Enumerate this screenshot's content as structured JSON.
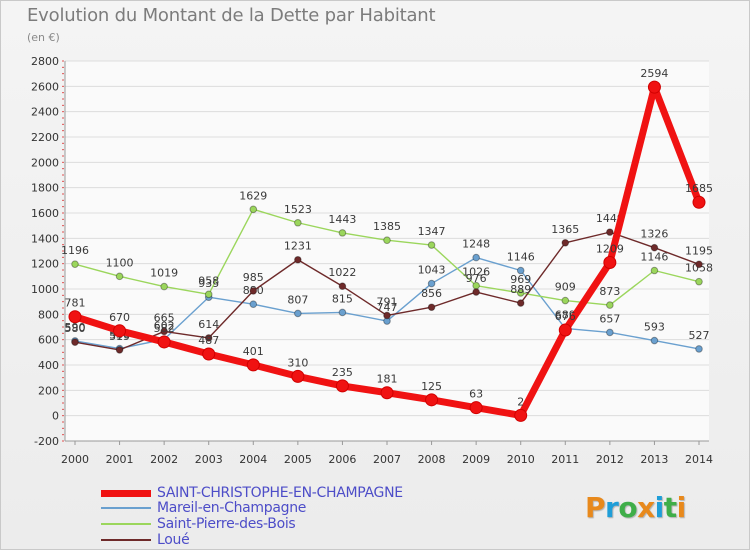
{
  "title": "Evolution du Montant de la Dette par Habitant",
  "unit": "(en €)",
  "logo": {
    "text": "Proxiti",
    "letter_colors": [
      "#e8891c",
      "#1f9ed8",
      "#3fae49",
      "#e8891c",
      "#1f9ed8",
      "#3fae49",
      "#e8891c"
    ]
  },
  "chart_data": {
    "type": "line",
    "title": "Evolution du Montant de la Dette par Habitant",
    "ylabel": "(en €)",
    "xlabel": "",
    "ylim": [
      -200,
      2800
    ],
    "y_ticks": [
      -200,
      0,
      200,
      400,
      600,
      800,
      1000,
      1200,
      1400,
      1600,
      1800,
      2000,
      2200,
      2400,
      2600,
      2800
    ],
    "x": [
      "2000",
      "2001",
      "2002",
      "2003",
      "2004",
      "2005",
      "2006",
      "2007",
      "2008",
      "2009",
      "2010",
      "2011",
      "2012",
      "2013",
      "2014"
    ],
    "series": [
      {
        "name": "Mareil-en-Champagne",
        "color": "#6aa0cf",
        "values": [
          590,
          530,
          602,
          935,
          880,
          807,
          815,
          747,
          1043,
          1248,
          1146,
          689,
          657,
          593,
          527
        ],
        "labels": [
          "590",
          "530",
          "602",
          "935",
          "880",
          "807",
          "815",
          "747",
          "1043",
          "1248",
          "1146",
          "689",
          "657",
          "593",
          "527"
        ]
      },
      {
        "name": "Saint-Pierre-des-Bois",
        "color": "#9bd65c",
        "values": [
          1196,
          1100,
          1019,
          958,
          1629,
          1523,
          1443,
          1385,
          1347,
          1026,
          969,
          909,
          873,
          1146,
          1058
        ],
        "labels": [
          "1196",
          "1100",
          "1019",
          "958",
          "1629",
          "1523",
          "1443",
          "1385",
          "1347",
          "1026",
          "969",
          "909",
          "873",
          "1146",
          "1058"
        ]
      },
      {
        "name": "Loué",
        "color": "#6e2a2a",
        "values": [
          580,
          519,
          665,
          614,
          985,
          1231,
          1022,
          791,
          856,
          976,
          889,
          1365,
          1449,
          1326,
          1195
        ],
        "labels": [
          "580",
          "519",
          "665",
          "614",
          "985",
          "1231",
          "1022",
          "791",
          "856",
          "976",
          "889",
          "1365",
          "1449",
          "1326",
          "1195"
        ]
      },
      {
        "name": "SAINT-CHRISTOPHE-EN-CHAMPAGNE",
        "color": "#f01212",
        "values": [
          781,
          670,
          582,
          487,
          401,
          310,
          235,
          181,
          125,
          63,
          2,
          676,
          1209,
          2594,
          1685
        ],
        "labels": [
          "781",
          "670",
          "582",
          "487",
          "401",
          "310",
          "235",
          "181",
          "125",
          "63",
          "2",
          "676",
          "1209",
          "2594",
          "1685"
        ]
      }
    ],
    "legend": {
      "placement": "bottom-left",
      "entries": [
        "SAINT-CHRISTOPHE-EN-CHAMPAGNE",
        "Mareil-en-Champagne",
        "Saint-Pierre-des-Bois",
        "Loué"
      ]
    }
  }
}
